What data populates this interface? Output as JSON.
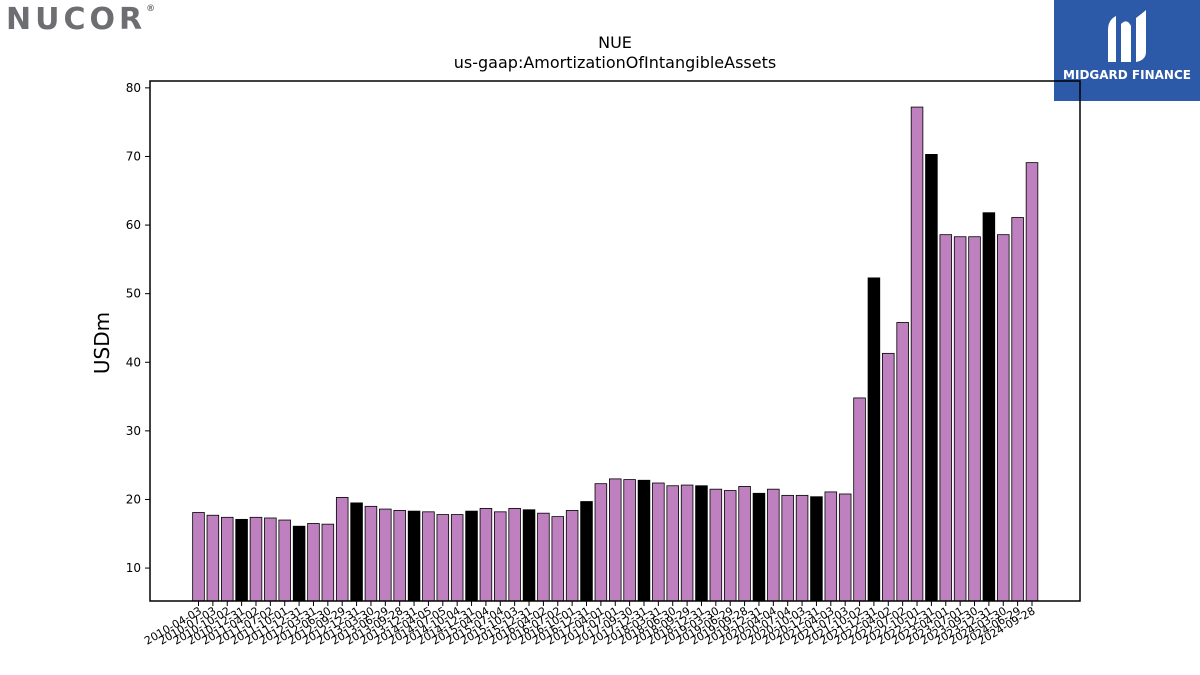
{
  "branding": {
    "company_logo_text": "NUCOR",
    "company_logo_mark": "®",
    "publisher_logo_text": "MIDGARD FINANCE",
    "publisher_logo_icon": "midgard-m-icon"
  },
  "chart_data": {
    "type": "bar",
    "title": "NUE",
    "subtitle": "us-gaap:AmortizationOfIntangibleAssets",
    "xlabel": "",
    "ylabel": "USDm",
    "ylim": [
      5.2,
      81
    ],
    "yticks": [
      10,
      20,
      30,
      40,
      50,
      60,
      70,
      80
    ],
    "grid": false,
    "colors": {
      "quarter": "#bf80bf",
      "annual": "#000000",
      "edge": "#000000"
    },
    "categories": [
      "2010-04-03",
      "2010-07-03",
      "2010-10-02",
      "2010-12-31",
      "2011-04-02",
      "2011-07-02",
      "2011-10-01",
      "2011-12-31",
      "2012-03-31",
      "2012-06-30",
      "2012-09-29",
      "2012-12-31",
      "2013-03-30",
      "2013-06-29",
      "2013-09-28",
      "2013-12-31",
      "2014-04-05",
      "2014-07-05",
      "2014-10-04",
      "2014-12-31",
      "2015-04-04",
      "2015-07-04",
      "2015-10-03",
      "2015-12-31",
      "2016-04-02",
      "2016-07-02",
      "2016-10-01",
      "2016-12-31",
      "2017-04-01",
      "2017-07-01",
      "2017-09-30",
      "2017-12-31",
      "2018-03-31",
      "2018-06-30",
      "2018-09-29",
      "2018-12-31",
      "2019-03-30",
      "2019-06-29",
      "2019-09-28",
      "2019-12-31",
      "2020-04-04",
      "2020-07-04",
      "2020-10-03",
      "2020-12-31",
      "2021-04-03",
      "2021-07-03",
      "2021-10-02",
      "2021-12-31",
      "2022-04-02",
      "2022-07-02",
      "2022-10-01",
      "2022-12-31",
      "2023-04-01",
      "2023-07-01",
      "2023-09-30",
      "2023-12-31",
      "2024-03-30",
      "2024-06-29",
      "2024-09-28"
    ],
    "values": [
      18.1,
      17.7,
      17.4,
      17.1,
      17.4,
      17.3,
      17.0,
      16.1,
      16.5,
      16.4,
      20.3,
      19.5,
      19.0,
      18.6,
      18.4,
      18.3,
      18.2,
      17.8,
      17.8,
      18.3,
      18.7,
      18.2,
      18.7,
      18.5,
      18.0,
      17.5,
      18.4,
      19.7,
      22.3,
      23.0,
      22.9,
      22.8,
      22.4,
      22.0,
      22.1,
      22.0,
      21.5,
      21.3,
      21.9,
      20.9,
      21.5,
      20.6,
      20.6,
      20.4,
      21.1,
      20.8,
      34.8,
      52.3,
      41.3,
      45.8,
      77.2,
      70.3,
      58.6,
      58.3,
      58.3,
      61.8,
      58.6,
      61.1,
      69.1
    ],
    "series_kind": [
      "q",
      "q",
      "q",
      "a",
      "q",
      "q",
      "q",
      "a",
      "q",
      "q",
      "q",
      "a",
      "q",
      "q",
      "q",
      "a",
      "q",
      "q",
      "q",
      "a",
      "q",
      "q",
      "q",
      "a",
      "q",
      "q",
      "q",
      "a",
      "q",
      "q",
      "q",
      "a",
      "q",
      "q",
      "q",
      "a",
      "q",
      "q",
      "q",
      "a",
      "q",
      "q",
      "q",
      "a",
      "q",
      "q",
      "q",
      "a",
      "q",
      "q",
      "q",
      "a",
      "q",
      "q",
      "q",
      "a",
      "q",
      "q",
      "q"
    ],
    "xtick_labels": [
      "2010-04-03",
      "2010-07-03",
      "2010-10-02",
      "2010-12-31",
      "2011-04-02",
      "2011-07-02",
      "2011-10-01",
      "2011-12-31",
      "2012-03-31",
      "2012-06-30",
      "2012-09-29",
      "2012-12-31",
      "2013-03-30",
      "2013-06-29",
      "2013-09-28",
      "2013-12-31",
      "2014-04-05",
      "2014-07-05",
      "2014-10-04",
      "2014-12-31",
      "2015-04-04",
      "2015-07-04",
      "2015-10-03",
      "2015-12-31",
      "2016-04-02",
      "2016-07-02",
      "2016-10-01",
      "2016-12-31",
      "2017-04-01",
      "2017-07-01",
      "2017-09-30",
      "2017-12-31",
      "2018-03-31",
      "2018-06-30",
      "2018-09-29",
      "2018-12-31",
      "2019-03-30",
      "2019-06-29",
      "2019-09-28",
      "2019-12-31",
      "2020-04-04",
      "2020-07-04",
      "2020-10-03",
      "2020-12-31",
      "2021-04-03",
      "2021-07-03",
      "2021-10-02",
      "2021-12-31",
      "2022-04-02",
      "2022-07-02",
      "2022-10-01",
      "2022-12-31",
      "2023-04-01",
      "2023-07-01",
      "2023-09-30",
      "2023-12-31",
      "2024-03-30",
      "2024-06-29",
      "2024-09-28"
    ]
  }
}
